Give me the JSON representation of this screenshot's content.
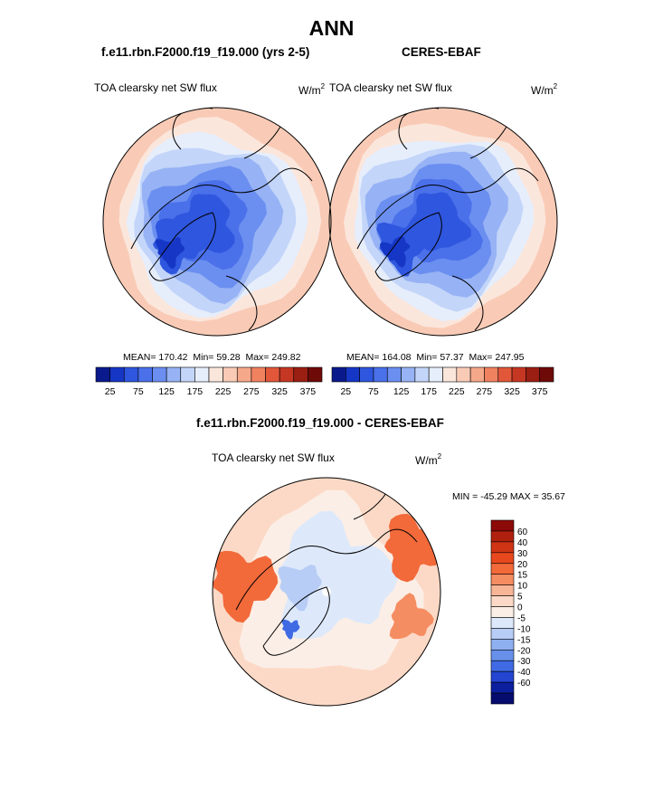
{
  "title": "ANN",
  "panels": {
    "left": {
      "case_title": "f.e11.rbn.F2000.f19_f19.000 (yrs 2-5)",
      "variable": "TOA clearsky net SW flux",
      "units_base": "W/m",
      "units_exp": "2",
      "stats": {
        "mean_label": "MEAN=",
        "mean": "170.42",
        "min_label": "Min=",
        "min": "59.28",
        "max_label": "Max=",
        "max": "249.82"
      }
    },
    "right": {
      "case_title": "CERES-EBAF",
      "variable": "TOA clearsky net SW flux",
      "units_base": "W/m",
      "units_exp": "2",
      "stats": {
        "mean_label": "MEAN=",
        "mean": "164.08",
        "min_label": "Min=",
        "min": "57.37",
        "max_label": "Max=",
        "max": "247.95"
      }
    },
    "diff": {
      "case_title": "f.e11.rbn.F2000.f19_f19.000 - CERES-EBAF",
      "variable": "TOA clearsky net SW flux",
      "units_base": "W/m",
      "units_exp": "2",
      "minmax": "MIN = -45.29 MAX =  35.67"
    }
  },
  "chart_data": [
    {
      "type": "heatmap",
      "projection": "north polar stereographic",
      "title": "f.e11.rbn.F2000.f19_f19.000 (yrs 2-5)",
      "variable": "TOA clearsky net SW flux",
      "units": "W/m2",
      "mean": 170.42,
      "min": 59.28,
      "max": 249.82,
      "levels": [
        25,
        50,
        75,
        100,
        125,
        150,
        175,
        200,
        225,
        250,
        275,
        300,
        325,
        350,
        375
      ],
      "colorbar_labels": [
        "25",
        "75",
        "125",
        "175",
        "225",
        "275",
        "325",
        "375"
      ],
      "colors": [
        "#0a1a8c",
        "#1636c6",
        "#2f56de",
        "#4a70ea",
        "#6b8ff0",
        "#97b3f5",
        "#c3d5f9",
        "#e6eefc",
        "#fbe6dc",
        "#f9cbb6",
        "#f5a98a",
        "#f0825f",
        "#e2573a",
        "#c53723",
        "#9a1e12",
        "#6e0a08"
      ]
    },
    {
      "type": "heatmap",
      "projection": "north polar stereographic",
      "title": "CERES-EBAF",
      "variable": "TOA clearsky net SW flux",
      "units": "W/m2",
      "mean": 164.08,
      "min": 57.37,
      "max": 247.95,
      "levels": [
        25,
        50,
        75,
        100,
        125,
        150,
        175,
        200,
        225,
        250,
        275,
        300,
        325,
        350,
        375
      ],
      "colorbar_labels": [
        "25",
        "75",
        "125",
        "175",
        "225",
        "275",
        "325",
        "375"
      ],
      "colors": [
        "#0a1a8c",
        "#1636c6",
        "#2f56de",
        "#4a70ea",
        "#6b8ff0",
        "#97b3f5",
        "#c3d5f9",
        "#e6eefc",
        "#fbe6dc",
        "#f9cbb6",
        "#f5a98a",
        "#f0825f",
        "#e2573a",
        "#c53723",
        "#9a1e12",
        "#6e0a08"
      ]
    },
    {
      "type": "heatmap",
      "projection": "north polar stereographic",
      "title": "f.e11.rbn.F2000.f19_f19.000 - CERES-EBAF",
      "variable": "TOA clearsky net SW flux",
      "units": "W/m2",
      "min": -45.29,
      "max": 35.67,
      "colorbar_labels": [
        "60",
        "40",
        "30",
        "20",
        "15",
        "10",
        "5",
        "0",
        "-5",
        "-10",
        "-15",
        "-20",
        "-30",
        "-40",
        "-60"
      ],
      "colors": [
        "#8c0a08",
        "#b0200f",
        "#cf3414",
        "#e8481d",
        "#f2693a",
        "#f58d62",
        "#f8b596",
        "#fcd9c6",
        "#fbeee6",
        "#dde9fb",
        "#b7cdf6",
        "#8fb0f0",
        "#6690ea",
        "#3f6ae3",
        "#2345d2",
        "#0c1f9e",
        "#060c6e"
      ]
    }
  ]
}
